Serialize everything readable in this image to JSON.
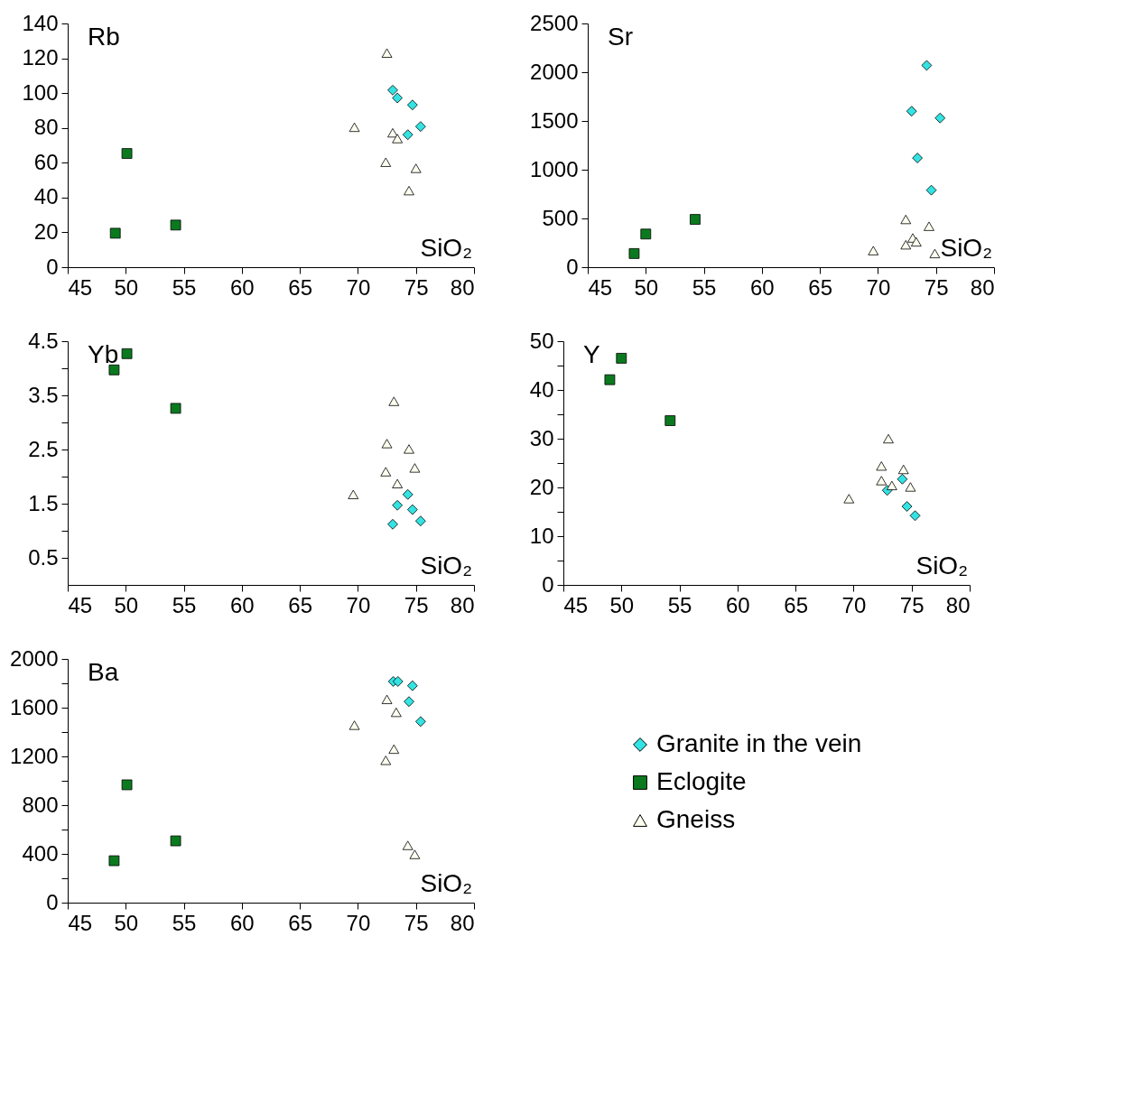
{
  "chart_data": [
    {
      "type": "scatter",
      "annotations": [
        "Rb"
      ],
      "xlabel": "SiO₂",
      "xlim": [
        45,
        80
      ],
      "xticks": [
        45,
        50,
        55,
        60,
        65,
        70,
        75,
        80
      ],
      "ylim": [
        0,
        140
      ],
      "yticks": [
        0,
        20,
        40,
        60,
        80,
        100,
        120,
        140
      ],
      "grid": false,
      "legend": false,
      "series": [
        {
          "color": "#33e3e3",
          "marker": "diamond",
          "x": [
            73.0,
            73.4,
            74.7,
            74.3,
            75.4
          ],
          "values": [
            101.7,
            97.2,
            93.2,
            76.1,
            80.8
          ]
        },
        {
          "color": "#0b7a1f",
          "marker": "square",
          "x": [
            49.1,
            50.1,
            54.3
          ],
          "values": [
            19.5,
            65.3,
            24.2
          ]
        },
        {
          "color": "#fffff0",
          "marker": "triangle",
          "x": [
            72.5,
            69.7,
            73.0,
            73.4,
            72.4,
            75.0,
            74.4
          ],
          "values": [
            123,
            80.4,
            77.2,
            73.9,
            60.3,
            56.8,
            44
          ]
        }
      ]
    },
    {
      "type": "scatter",
      "annotations": [
        "Sr"
      ],
      "xlabel": "SiO₂",
      "xlim": [
        45,
        80
      ],
      "xticks": [
        45,
        50,
        55,
        60,
        65,
        70,
        75,
        80
      ],
      "ylim": [
        0,
        2500
      ],
      "yticks": [
        0,
        500,
        1000,
        1500,
        2000,
        2500
      ],
      "grid": false,
      "legend": false,
      "series": [
        {
          "color": "#33e3e3",
          "marker": "diamond",
          "x": [
            74.2,
            72.9,
            75.35,
            73.4,
            74.6
          ],
          "values": [
            2070,
            1600,
            1530,
            1120,
            790
          ]
        },
        {
          "color": "#0b7a1f",
          "marker": "square",
          "x": [
            49.0,
            50.0,
            54.25
          ],
          "values": [
            140,
            340,
            490
          ]
        },
        {
          "color": "#fffff0",
          "marker": "triangle",
          "x": [
            72.4,
            74.4,
            73.0,
            73.3,
            72.4,
            69.6,
            74.9
          ],
          "values": [
            490,
            420,
            300,
            260,
            230,
            170,
            140
          ]
        }
      ]
    },
    {
      "type": "scatter",
      "annotations": [
        "Yb"
      ],
      "xlabel": "SiO₂",
      "xlim": [
        45,
        80
      ],
      "xticks": [
        45,
        50,
        55,
        60,
        65,
        70,
        75,
        80
      ],
      "ylim": [
        0,
        4.5
      ],
      "yticks": [
        0.5,
        {
          "value": 1,
          "label": null
        },
        1.5,
        {
          "value": 2,
          "label": null
        },
        2.5,
        {
          "value": 3,
          "label": null
        },
        3.5,
        {
          "value": 4,
          "label": null
        },
        4.5
      ],
      "grid": false,
      "legend": false,
      "series": [
        {
          "color": "#33e3e3",
          "marker": "diamond",
          "x": [
            74.3,
            73.4,
            74.7,
            73.0,
            75.4
          ],
          "values": [
            1.67,
            1.47,
            1.39,
            1.12,
            1.18
          ]
        },
        {
          "color": "#0b7a1f",
          "marker": "square",
          "x": [
            49.0,
            50.1,
            54.3
          ],
          "values": [
            3.97,
            4.27,
            3.26
          ]
        },
        {
          "color": "#fffff0",
          "marker": "triangle",
          "x": [
            73.1,
            72.5,
            74.4,
            74.9,
            72.4,
            73.4,
            69.6
          ],
          "values": [
            3.39,
            2.61,
            2.51,
            2.16,
            2.09,
            1.87,
            1.67
          ]
        }
      ]
    },
    {
      "type": "scatter",
      "annotations": [
        "Y"
      ],
      "xlabel": "SiO₂",
      "xlim": [
        45,
        80
      ],
      "xticks": [
        45,
        50,
        55,
        60,
        65,
        70,
        75,
        80
      ],
      "ylim": [
        0,
        50
      ],
      "yticks": [
        0,
        {
          "value": 5,
          "label": null
        },
        10,
        {
          "value": 15,
          "label": null
        },
        20,
        {
          "value": 25,
          "label": null
        },
        30,
        {
          "value": 35,
          "label": null
        },
        40,
        {
          "value": 45,
          "label": null
        },
        50
      ],
      "grid": false,
      "legend": false,
      "series": [
        {
          "color": "#33e3e3",
          "marker": "diamond",
          "x": [
            74.2,
            72.9,
            74.6,
            75.3
          ],
          "values": [
            21.7,
            19.4,
            16.1,
            14.2
          ]
        },
        {
          "color": "#0b7a1f",
          "marker": "square",
          "x": [
            49.0,
            50.0,
            54.2
          ],
          "values": [
            42.1,
            46.5,
            33.7
          ]
        },
        {
          "color": "#fffff0",
          "marker": "triangle",
          "x": [
            73.0,
            72.4,
            74.3,
            72.4,
            73.3,
            74.9,
            69.6
          ],
          "values": [
            30.0,
            24.4,
            23.7,
            21.4,
            20.4,
            20.1,
            17.7
          ]
        }
      ]
    },
    {
      "type": "scatter",
      "annotations": [
        "Ba"
      ],
      "xlabel": "SiO₂",
      "xlim": [
        45,
        80
      ],
      "xticks": [
        45,
        50,
        55,
        60,
        65,
        70,
        75,
        80
      ],
      "ylim": [
        0,
        2000
      ],
      "yticks": [
        0,
        {
          "value": 200,
          "label": null
        },
        400,
        {
          "value": 600,
          "label": null
        },
        800,
        {
          "value": 1000,
          "label": null
        },
        1200,
        {
          "value": 1400,
          "label": null
        },
        1600,
        {
          "value": 1800,
          "label": null
        },
        2000
      ],
      "grid": false,
      "legend": "right",
      "series": [
        {
          "name": "Granite in the vein",
          "color": "#33e3e3",
          "marker": "diamond",
          "x": [
            73.05,
            73.45,
            74.7,
            74.4,
            75.4
          ],
          "values": [
            1815,
            1815,
            1780,
            1650,
            1486
          ]
        },
        {
          "name": "Eclogite",
          "color": "#0b7a1f",
          "marker": "square",
          "x": [
            49.0,
            50.1,
            54.3
          ],
          "values": [
            344,
            967,
            507
          ]
        },
        {
          "name": "Gneiss",
          "color": "#fffff0",
          "marker": "triangle",
          "x": [
            72.5,
            73.3,
            69.7,
            73.1,
            72.4,
            74.3,
            74.9
          ],
          "values": [
            1668,
            1562,
            1456,
            1260,
            1168,
            470,
            396
          ]
        }
      ]
    }
  ]
}
